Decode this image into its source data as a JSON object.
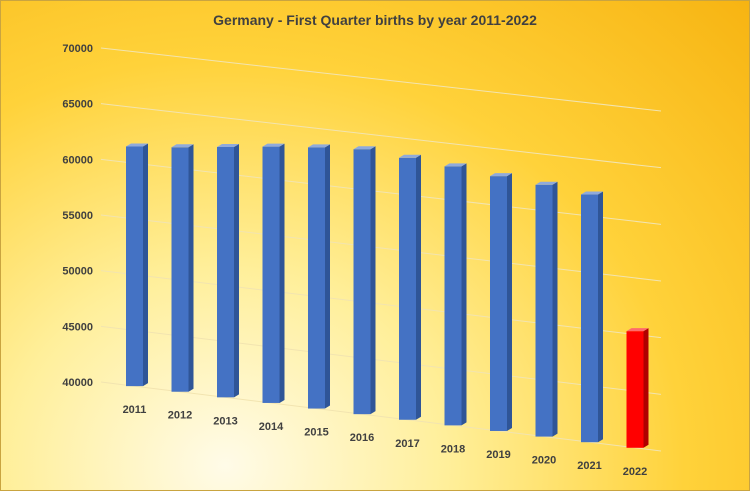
{
  "chart_data": {
    "type": "bar",
    "title": "Germany  - First Quarter births  by year 2011-2022",
    "xlabel": "",
    "ylabel": "",
    "categories": [
      "2011",
      "2012",
      "2013",
      "2014",
      "2015",
      "2016",
      "2017",
      "2018",
      "2019",
      "2020",
      "2021",
      "2022"
    ],
    "values": [
      61500,
      61900,
      62400,
      62900,
      63300,
      63600,
      63300,
      63000,
      62600,
      62300,
      61900,
      50300
    ],
    "ylim": [
      40000,
      70000
    ],
    "yticks": [
      "70000",
      "65000",
      "60000",
      "55000",
      "50000",
      "45000",
      "40000"
    ],
    "grid": true,
    "legend": "none",
    "style": "3d-column",
    "colors": {
      "bar": "#4472c4",
      "bar_side": "#2f5597",
      "bar_top": "#8faadc",
      "highlight": "#ff0000",
      "highlight_side": "#b00000",
      "highlight_top": "#ff6b6b",
      "grid": "#f2e4b0"
    },
    "highlighted_category": "2022"
  }
}
